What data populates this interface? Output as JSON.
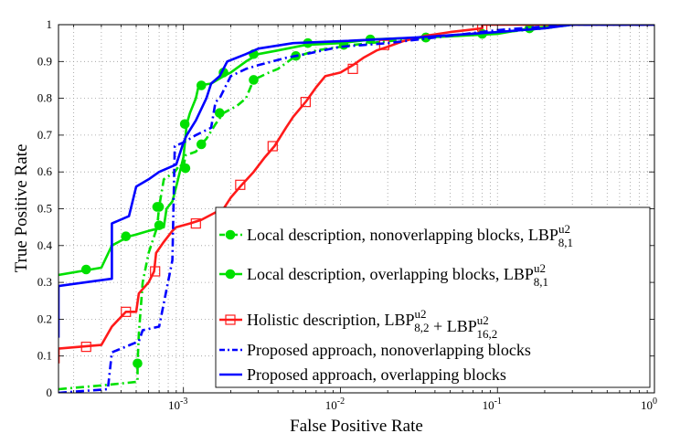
{
  "chart_data": {
    "type": "line",
    "title": "",
    "xlabel": "False Positive Rate",
    "ylabel": "True Positive Rate",
    "xscale": "log",
    "xlim": [
      0.00016,
      1
    ],
    "ylim": [
      0,
      1
    ],
    "grid": true,
    "legend_position": "bottom-right",
    "x_tick_labels": [
      "10^-3",
      "10^-2",
      "10^-1",
      "10^0"
    ],
    "y_tick_labels": [
      "0",
      "0.1",
      "0.2",
      "0.3",
      "0.4",
      "0.5",
      "0.6",
      "0.7",
      "0.8",
      "0.9",
      "1"
    ],
    "series": [
      {
        "name": "Local description, nonoverlapping blocks, LBP^u2_8,1",
        "label_parts": [
          "Local description, nonoverlapping blocks, LBP",
          "u2",
          "8,1"
        ],
        "color": "#00e000",
        "style": "dash-dot",
        "marker": "filled-circle",
        "points": [
          [
            0.00016,
            0.01
          ],
          [
            0.0003,
            0.02
          ],
          [
            0.00051,
            0.03
          ],
          [
            0.00051,
            0.08
          ],
          [
            0.00052,
            0.16
          ],
          [
            0.00055,
            0.3
          ],
          [
            0.0006,
            0.38
          ],
          [
            0.00068,
            0.45
          ],
          [
            0.0007,
            0.505
          ],
          [
            0.00075,
            0.58
          ],
          [
            0.00088,
            0.6
          ],
          [
            0.00095,
            0.62
          ],
          [
            0.001,
            0.61
          ],
          [
            0.00103,
            0.645
          ],
          [
            0.0012,
            0.655
          ],
          [
            0.0013,
            0.675
          ],
          [
            0.0014,
            0.69
          ],
          [
            0.0016,
            0.73
          ],
          [
            0.0018,
            0.76
          ],
          [
            0.0022,
            0.78
          ],
          [
            0.0025,
            0.8
          ],
          [
            0.0028,
            0.85
          ],
          [
            0.0035,
            0.87
          ],
          [
            0.004,
            0.88
          ],
          [
            0.005,
            0.91
          ],
          [
            0.007,
            0.93
          ],
          [
            0.012,
            0.945
          ],
          [
            0.02,
            0.955
          ],
          [
            0.035,
            0.965
          ],
          [
            0.08,
            0.975
          ],
          [
            0.15,
            0.985
          ],
          [
            0.2,
            0.99
          ],
          [
            0.3,
            1.0
          ],
          [
            1.0,
            1.0
          ]
        ],
        "marker_points": [
          [
            0.00051,
            0.08
          ],
          [
            0.0007,
            0.505
          ],
          [
            0.0007,
            0.455
          ],
          [
            0.00103,
            0.61
          ],
          [
            0.0013,
            0.675
          ],
          [
            0.0017,
            0.76
          ],
          [
            0.0028,
            0.85
          ],
          [
            0.0052,
            0.915
          ],
          [
            0.0105,
            0.945
          ],
          [
            0.035,
            0.965
          ],
          [
            0.08,
            0.975
          ]
        ]
      },
      {
        "name": "Local description, overlapping blocks, LBP^u2_8,1",
        "label_parts": [
          "Local description, overlapping blocks, LBP",
          "u2",
          "8,1"
        ],
        "color": "#00e000",
        "style": "solid",
        "marker": "filled-circle",
        "points": [
          [
            0.00016,
            0.32
          ],
          [
            0.0003,
            0.34
          ],
          [
            0.00035,
            0.4
          ],
          [
            0.00045,
            0.425
          ],
          [
            0.0005,
            0.43
          ],
          [
            0.0006,
            0.44
          ],
          [
            0.00075,
            0.45
          ],
          [
            0.00078,
            0.5
          ],
          [
            0.00085,
            0.52
          ],
          [
            0.0009,
            0.56
          ],
          [
            0.001,
            0.64
          ],
          [
            0.00105,
            0.73
          ],
          [
            0.0011,
            0.76
          ],
          [
            0.0012,
            0.8
          ],
          [
            0.00125,
            0.835
          ],
          [
            0.0015,
            0.84
          ],
          [
            0.0018,
            0.86
          ],
          [
            0.002,
            0.87
          ],
          [
            0.0025,
            0.9
          ],
          [
            0.003,
            0.92
          ],
          [
            0.004,
            0.93
          ],
          [
            0.006,
            0.945
          ],
          [
            0.01,
            0.95
          ],
          [
            0.016,
            0.96
          ],
          [
            0.035,
            0.965
          ],
          [
            0.1,
            0.975
          ],
          [
            0.16,
            0.99
          ],
          [
            0.3,
            1.0
          ],
          [
            1.0,
            1.0
          ]
        ],
        "marker_points": [
          [
            0.00024,
            0.335
          ],
          [
            0.00043,
            0.425
          ],
          [
            0.00068,
            0.505
          ],
          [
            0.00102,
            0.73
          ],
          [
            0.0013,
            0.835
          ],
          [
            0.0018,
            0.87
          ],
          [
            0.0028,
            0.92
          ],
          [
            0.0062,
            0.95
          ],
          [
            0.0155,
            0.96
          ],
          [
            0.035,
            0.965
          ],
          [
            0.16,
            0.99
          ]
        ]
      },
      {
        "name": "Holistic description, LBP^u2_8,2 + LBP^u2_16,2",
        "label_parts": [
          "Holistic description, LBP",
          "u2",
          "8,2",
          " + LBP",
          "u2",
          "16,2"
        ],
        "color": "#ff1a1a",
        "style": "solid",
        "marker": "open-square",
        "points": [
          [
            0.00016,
            0.08
          ],
          [
            0.00016,
            0.12
          ],
          [
            0.0003,
            0.13
          ],
          [
            0.00035,
            0.18
          ],
          [
            0.00043,
            0.22
          ],
          [
            0.0005,
            0.22
          ],
          [
            0.00052,
            0.27
          ],
          [
            0.0006,
            0.3
          ],
          [
            0.00065,
            0.33
          ],
          [
            0.00067,
            0.38
          ],
          [
            0.00075,
            0.41
          ],
          [
            0.00085,
            0.44
          ],
          [
            0.0009,
            0.45
          ],
          [
            0.0011,
            0.46
          ],
          [
            0.0013,
            0.47
          ],
          [
            0.0016,
            0.49
          ],
          [
            0.0018,
            0.5
          ],
          [
            0.002,
            0.53
          ],
          [
            0.0023,
            0.56
          ],
          [
            0.0028,
            0.6
          ],
          [
            0.0033,
            0.64
          ],
          [
            0.0038,
            0.67
          ],
          [
            0.0045,
            0.72
          ],
          [
            0.005,
            0.75
          ],
          [
            0.006,
            0.79
          ],
          [
            0.007,
            0.83
          ],
          [
            0.008,
            0.86
          ],
          [
            0.01,
            0.87
          ],
          [
            0.012,
            0.89
          ],
          [
            0.014,
            0.91
          ],
          [
            0.017,
            0.93
          ],
          [
            0.02,
            0.94
          ],
          [
            0.025,
            0.955
          ],
          [
            0.035,
            0.97
          ],
          [
            0.05,
            0.98
          ],
          [
            0.08,
            0.99
          ],
          [
            0.08,
            1.0
          ],
          [
            1.0,
            1.0
          ]
        ],
        "marker_points": [
          [
            0.00024,
            0.125
          ],
          [
            0.00043,
            0.22
          ],
          [
            0.00066,
            0.33
          ],
          [
            0.0012,
            0.46
          ],
          [
            0.0023,
            0.565
          ],
          [
            0.0037,
            0.67
          ],
          [
            0.006,
            0.79
          ],
          [
            0.012,
            0.88
          ],
          [
            0.019,
            0.945
          ],
          [
            0.08,
            0.995
          ]
        ]
      },
      {
        "name": "Proposed approach, nonoverlapping blocks",
        "label_parts": [
          "Proposed approach, nonoverlapping blocks"
        ],
        "color": "#0000ff",
        "style": "dash-dot",
        "marker": "none",
        "points": [
          [
            0.00016,
            0.0
          ],
          [
            0.00033,
            0.01
          ],
          [
            0.00035,
            0.11
          ],
          [
            0.0004,
            0.12
          ],
          [
            0.00052,
            0.14
          ],
          [
            0.00055,
            0.17
          ],
          [
            0.0007,
            0.18
          ],
          [
            0.00085,
            0.36
          ],
          [
            0.00088,
            0.67
          ],
          [
            0.001,
            0.68
          ],
          [
            0.0012,
            0.7
          ],
          [
            0.0015,
            0.72
          ],
          [
            0.0016,
            0.79
          ],
          [
            0.0017,
            0.8
          ],
          [
            0.002,
            0.86
          ],
          [
            0.0025,
            0.88
          ],
          [
            0.003,
            0.89
          ],
          [
            0.0045,
            0.91
          ],
          [
            0.006,
            0.92
          ],
          [
            0.01,
            0.94
          ],
          [
            0.02,
            0.95
          ],
          [
            0.05,
            0.97
          ],
          [
            0.1,
            0.985
          ],
          [
            0.2,
            0.995
          ],
          [
            0.3,
            1.0
          ],
          [
            1.0,
            1.0
          ]
        ],
        "marker_points": []
      },
      {
        "name": "Proposed approach, overlapping blocks",
        "label_parts": [
          "Proposed approach, overlapping blocks"
        ],
        "color": "#0000ff",
        "style": "solid",
        "marker": "none",
        "points": [
          [
            0.00016,
            0.15
          ],
          [
            0.00016,
            0.29
          ],
          [
            0.00035,
            0.31
          ],
          [
            0.00035,
            0.46
          ],
          [
            0.00045,
            0.48
          ],
          [
            0.0005,
            0.56
          ],
          [
            0.0006,
            0.58
          ],
          [
            0.0007,
            0.6
          ],
          [
            0.0009,
            0.62
          ],
          [
            0.001,
            0.68
          ],
          [
            0.00105,
            0.7
          ],
          [
            0.0012,
            0.74
          ],
          [
            0.0014,
            0.8
          ],
          [
            0.0015,
            0.84
          ],
          [
            0.0017,
            0.86
          ],
          [
            0.0019,
            0.9
          ],
          [
            0.0025,
            0.92
          ],
          [
            0.003,
            0.935
          ],
          [
            0.005,
            0.95
          ],
          [
            0.01,
            0.955
          ],
          [
            0.03,
            0.965
          ],
          [
            0.1,
            0.98
          ],
          [
            0.2,
            0.99
          ],
          [
            0.3,
            1.0
          ],
          [
            1.0,
            1.0
          ]
        ],
        "marker_points": []
      }
    ]
  }
}
